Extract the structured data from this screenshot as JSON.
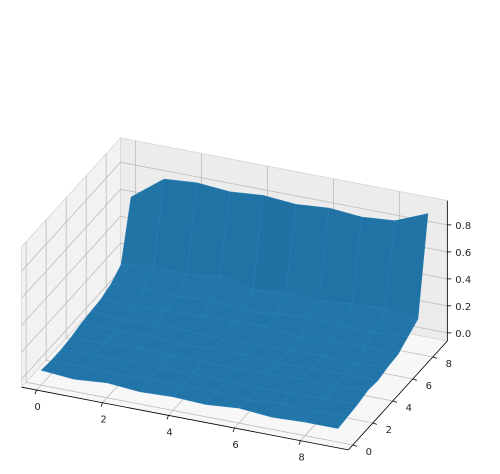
{
  "chart_data": {
    "type": "surface3d",
    "title": "",
    "xlabel": "",
    "ylabel": "",
    "zlabel": "",
    "xlim": [
      0,
      9
    ],
    "ylim": [
      0,
      9
    ],
    "zlim": [
      0,
      0.9
    ],
    "x_ticks": [
      "0",
      "2",
      "4",
      "6",
      "8"
    ],
    "y_ticks": [
      "0",
      "2",
      "4",
      "6",
      "8"
    ],
    "z_ticks": [
      "0.0",
      "0.2",
      "0.4",
      "0.6",
      "0.8"
    ],
    "grid": true,
    "surface_color": "#1f6b9a",
    "x": [
      0,
      1,
      2,
      3,
      4,
      5,
      6,
      7,
      8,
      9
    ],
    "y": [
      0,
      1,
      2,
      3,
      4,
      5,
      6,
      7,
      8,
      9
    ],
    "z": [
      [
        0.05,
        0.03,
        0.05,
        0.03,
        0.04,
        0.03,
        0.05,
        0.03,
        0.04,
        0.04
      ],
      [
        0.04,
        0.04,
        0.03,
        0.05,
        0.04,
        0.04,
        0.03,
        0.05,
        0.04,
        0.05
      ],
      [
        0.04,
        0.05,
        0.04,
        0.04,
        0.05,
        0.04,
        0.04,
        0.04,
        0.05,
        0.06
      ],
      [
        0.05,
        0.05,
        0.07,
        0.06,
        0.06,
        0.05,
        0.06,
        0.07,
        0.06,
        0.08
      ],
      [
        0.07,
        0.07,
        0.08,
        0.06,
        0.07,
        0.07,
        0.06,
        0.06,
        0.07,
        0.07
      ],
      [
        0.08,
        0.06,
        0.08,
        0.07,
        0.06,
        0.06,
        0.07,
        0.08,
        0.06,
        0.09
      ],
      [
        0.09,
        0.08,
        0.1,
        0.1,
        0.11,
        0.12,
        0.09,
        0.1,
        0.11,
        0.1
      ],
      [
        0.12,
        0.13,
        0.12,
        0.14,
        0.11,
        0.13,
        0.15,
        0.14,
        0.13,
        0.15
      ],
      [
        0.18,
        0.22,
        0.2,
        0.24,
        0.18,
        0.21,
        0.19,
        0.22,
        0.23,
        0.2
      ],
      [
        0.6,
        0.78,
        0.8,
        0.78,
        0.8,
        0.78,
        0.8,
        0.78,
        0.8,
        0.9
      ]
    ]
  }
}
